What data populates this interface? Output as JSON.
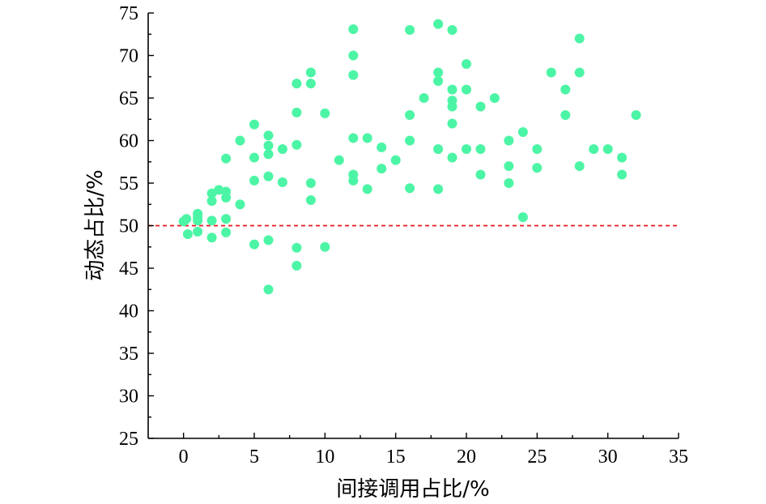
{
  "chart_data": {
    "type": "scatter",
    "xlabel": "间接调用占比/%",
    "ylabel": "动态占比/%",
    "xlim": [
      -2.5,
      35
    ],
    "ylim": [
      25,
      75
    ],
    "xticks": [
      0,
      5,
      10,
      15,
      20,
      25,
      30,
      35
    ],
    "yticks": [
      25,
      30,
      35,
      40,
      45,
      50,
      55,
      60,
      65,
      70,
      75
    ],
    "reference_line": {
      "y": 50,
      "color": "#e8191c",
      "style": "dashed"
    },
    "marker_color": "#4cf5a5",
    "points": [
      [
        0,
        50.5
      ],
      [
        0.2,
        50.8
      ],
      [
        0.3,
        49
      ],
      [
        1,
        51.4
      ],
      [
        1,
        51
      ],
      [
        1,
        50.6
      ],
      [
        1,
        49.3
      ],
      [
        2,
        53.8
      ],
      [
        2,
        52.9
      ],
      [
        2,
        50.6
      ],
      [
        2,
        48.6
      ],
      [
        2.5,
        54.2
      ],
      [
        3,
        54
      ],
      [
        3,
        57.9
      ],
      [
        3,
        53.3
      ],
      [
        3,
        50.8
      ],
      [
        3,
        49.2
      ],
      [
        4,
        60
      ],
      [
        4,
        52.5
      ],
      [
        5,
        61.9
      ],
      [
        5,
        58
      ],
      [
        5,
        55.3
      ],
      [
        5,
        47.8
      ],
      [
        6,
        60.6
      ],
      [
        6,
        59.4
      ],
      [
        6,
        58.4
      ],
      [
        6,
        55.8
      ],
      [
        6,
        48.3
      ],
      [
        6,
        42.5
      ],
      [
        7,
        59
      ],
      [
        7,
        55.1
      ],
      [
        8,
        66.7
      ],
      [
        8,
        63.3
      ],
      [
        8,
        59.5
      ],
      [
        8,
        47.4
      ],
      [
        8,
        45.3
      ],
      [
        9,
        68
      ],
      [
        9,
        66.7
      ],
      [
        9,
        55
      ],
      [
        9,
        53
      ],
      [
        10,
        63.2
      ],
      [
        10,
        47.5
      ],
      [
        11,
        57.7
      ],
      [
        12,
        73.1
      ],
      [
        12,
        70
      ],
      [
        12,
        67.7
      ],
      [
        12,
        60.3
      ],
      [
        12,
        56
      ],
      [
        12,
        55.3
      ],
      [
        13,
        60.3
      ],
      [
        13,
        54.3
      ],
      [
        14,
        59.2
      ],
      [
        14,
        56.7
      ],
      [
        15,
        57.7
      ],
      [
        16,
        73
      ],
      [
        16,
        63
      ],
      [
        16,
        60
      ],
      [
        16,
        54.4
      ],
      [
        17,
        65
      ],
      [
        18,
        73.7
      ],
      [
        18,
        68
      ],
      [
        18,
        67
      ],
      [
        18,
        59
      ],
      [
        18,
        54.3
      ],
      [
        19,
        73
      ],
      [
        19,
        66
      ],
      [
        19,
        64.7
      ],
      [
        19,
        64
      ],
      [
        19,
        62
      ],
      [
        19,
        58
      ],
      [
        20,
        69
      ],
      [
        20,
        66
      ],
      [
        20,
        59
      ],
      [
        21,
        64
      ],
      [
        21,
        59
      ],
      [
        21,
        56
      ],
      [
        22,
        65
      ],
      [
        23,
        60
      ],
      [
        23,
        57
      ],
      [
        23,
        55
      ],
      [
        24,
        61
      ],
      [
        24,
        51
      ],
      [
        25,
        59
      ],
      [
        25,
        56.8
      ],
      [
        26,
        68
      ],
      [
        27,
        66
      ],
      [
        27,
        63
      ],
      [
        28,
        72
      ],
      [
        28,
        68
      ],
      [
        28,
        57
      ],
      [
        29,
        59
      ],
      [
        30,
        59
      ],
      [
        31,
        58
      ],
      [
        31,
        56
      ],
      [
        32,
        63
      ]
    ]
  }
}
